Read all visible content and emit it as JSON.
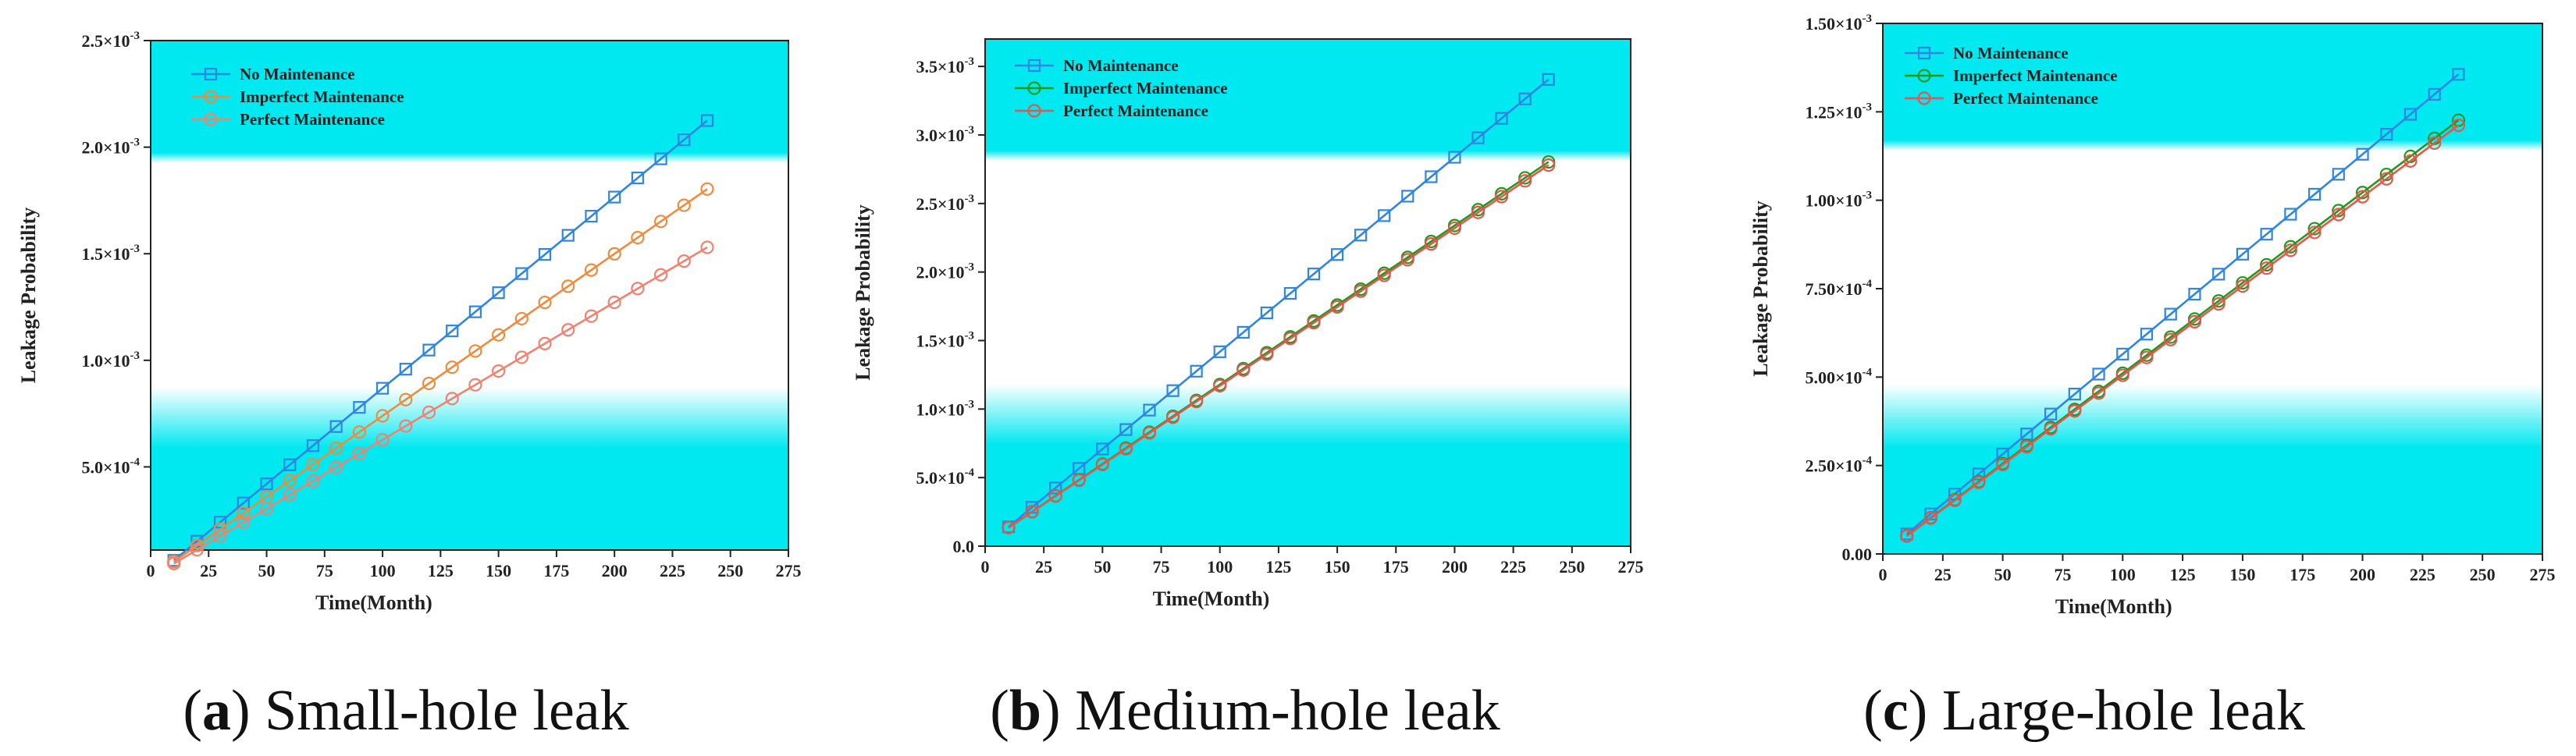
{
  "figure": {
    "captions": [
      {
        "letter": "a",
        "text": " Small-hole leak"
      },
      {
        "letter": "b",
        "text": " Medium-hole leak"
      },
      {
        "letter": "c",
        "text": " Large-hole leak"
      }
    ]
  },
  "chart_data": [
    {
      "type": "line",
      "id": "a",
      "xlabel": "Time(Month)",
      "ylabel": "Leakage Probability",
      "xlim": [
        0,
        275
      ],
      "ylim": [
        0.00011,
        0.0025
      ],
      "xticks": [
        0,
        25,
        50,
        75,
        100,
        125,
        150,
        175,
        200,
        225,
        250,
        275
      ],
      "xtick_labels": [
        "0",
        "25",
        "50",
        "75",
        "100",
        "125",
        "150",
        "175",
        "200",
        "225",
        "250",
        "275"
      ],
      "yticks": [
        0.0005,
        0.001,
        0.0015,
        0.002,
        0.0025
      ],
      "ytick_labels": [
        {
          "base": "5.0×10",
          "exp": "-4"
        },
        {
          "base": "1.0×10",
          "exp": "-3"
        },
        {
          "base": "1.5×10",
          "exp": "-3"
        },
        {
          "base": "2.0×10",
          "exp": "-3"
        },
        {
          "base": "2.5×10",
          "exp": "-3"
        }
      ],
      "grid": false,
      "legend": "top-left",
      "x": {
        "start": 10,
        "step": 10,
        "count": 24
      },
      "series": [
        {
          "name": "No Maintenance",
          "color": "#2f86e0",
          "marker": "square",
          "start_value": 6.15e-05,
          "step_value": 8.97e-05
        },
        {
          "name": "Imperfect Maintenance",
          "color": "#f08a3c",
          "marker": "circle",
          "start_value": 5.55e-05,
          "step_value": 7.6e-05
        },
        {
          "name": "Perfect Maintenance",
          "color": "#f2826f",
          "marker": "circle",
          "start_value": 4.66e-05,
          "step_value": 6.45e-05
        }
      ]
    },
    {
      "type": "line",
      "id": "b",
      "xlabel": "Time(Month)",
      "ylabel": "Leakage Probability",
      "xlim": [
        0,
        275
      ],
      "ylim": [
        0,
        0.0037
      ],
      "xticks": [
        0,
        25,
        50,
        75,
        100,
        125,
        150,
        175,
        200,
        225,
        250,
        275
      ],
      "xtick_labels": [
        "0",
        "25",
        "50",
        "75",
        "100",
        "125",
        "150",
        "175",
        "200",
        "225",
        "250",
        "275"
      ],
      "yticks": [
        0,
        0.0005,
        0.001,
        0.0015,
        0.002,
        0.0025,
        0.003,
        0.0035
      ],
      "ytick_labels": [
        {
          "base": "0.0",
          "exp": ""
        },
        {
          "base": "5.0×10",
          "exp": "-4"
        },
        {
          "base": "1.0×10",
          "exp": "-3"
        },
        {
          "base": "1.5×10",
          "exp": "-3"
        },
        {
          "base": "2.0×10",
          "exp": "-3"
        },
        {
          "base": "2.5×10",
          "exp": "-3"
        },
        {
          "base": "3.0×10",
          "exp": "-3"
        },
        {
          "base": "3.5×10",
          "exp": "-3"
        }
      ],
      "grid": false,
      "legend": "top-left",
      "x": {
        "start": 10,
        "step": 10,
        "count": 24
      },
      "series": [
        {
          "name": "No Maintenance",
          "color": "#2f86e0",
          "marker": "square",
          "start_value": 0.000141,
          "step_value": 0.0001419
        },
        {
          "name": "Imperfect Maintenance",
          "color": "#1f9a1f",
          "marker": "circle",
          "start_value": 0.000135,
          "step_value": 0.000116
        },
        {
          "name": "Perfect Maintenance",
          "color": "#e8554a",
          "marker": "circle",
          "start_value": 0.000135,
          "step_value": 0.000115
        }
      ]
    },
    {
      "type": "line",
      "id": "c",
      "xlabel": "Time(Month)",
      "ylabel": "Leakage Probability",
      "xlim": [
        0,
        275
      ],
      "ylim": [
        0,
        0.0015
      ],
      "xticks": [
        0,
        25,
        50,
        75,
        100,
        125,
        150,
        175,
        200,
        225,
        250,
        275
      ],
      "xtick_labels": [
        "0",
        "25",
        "50",
        "75",
        "100",
        "125",
        "150",
        "175",
        "200",
        "225",
        "250",
        "275"
      ],
      "yticks": [
        0,
        0.00025,
        0.0005,
        0.00075,
        0.001,
        0.00125,
        0.0015
      ],
      "ytick_labels": [
        {
          "base": "0.00",
          "exp": ""
        },
        {
          "base": "2.50×10",
          "exp": "-4"
        },
        {
          "base": "5.00×10",
          "exp": "-4"
        },
        {
          "base": "7.50×10",
          "exp": "-4"
        },
        {
          "base": "1.00×10",
          "exp": "-3"
        },
        {
          "base": "1.25×10",
          "exp": "-3"
        },
        {
          "base": "1.50×10",
          "exp": "-3"
        }
      ],
      "grid": false,
      "legend": "top-left",
      "x": {
        "start": 10,
        "step": 10,
        "count": 24
      },
      "series": [
        {
          "name": "No Maintenance",
          "color": "#2f86e0",
          "marker": "square",
          "start_value": 5.65e-05,
          "step_value": 5.65e-05
        },
        {
          "name": "Imperfect Maintenance",
          "color": "#1f9a1f",
          "marker": "circle",
          "start_value": 5.1e-05,
          "step_value": 5.11e-05
        },
        {
          "name": "Perfect Maintenance",
          "color": "#e8554a",
          "marker": "circle",
          "start_value": 5.05e-05,
          "step_value": 5.05e-05
        }
      ]
    }
  ]
}
